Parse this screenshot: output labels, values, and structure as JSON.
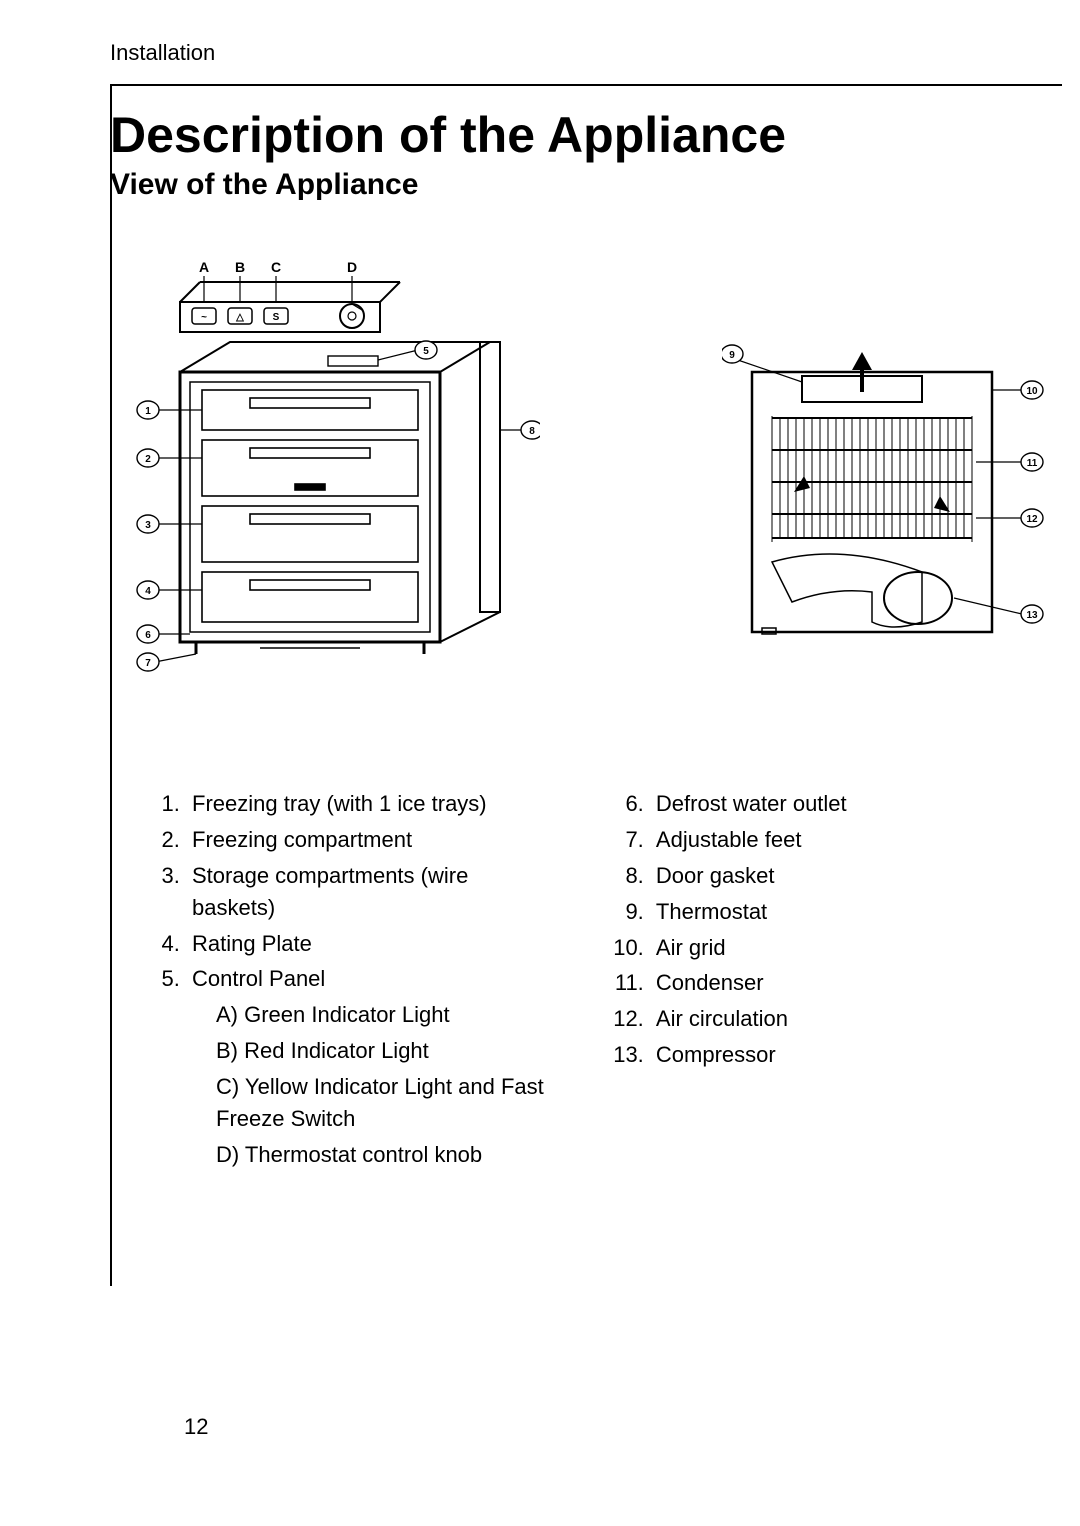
{
  "running_head": "Installation",
  "title": "Description of the Appliance",
  "subtitle": "View of the Appliance",
  "page_number": "12",
  "colors": {
    "text": "#000000",
    "background": "#ffffff",
    "line": "#000000"
  },
  "typography": {
    "title_fontsize_pt": 38,
    "subtitle_fontsize_pt": 22,
    "body_fontsize_pt": 17,
    "running_fontsize_pt": 17
  },
  "front_diagram": {
    "letter_labels": [
      "A",
      "B",
      "C",
      "D"
    ],
    "number_callouts": [
      1,
      2,
      3,
      4,
      5,
      6,
      7,
      8
    ]
  },
  "rear_diagram": {
    "number_callouts": [
      9,
      10,
      11,
      12,
      13
    ]
  },
  "parts_left": [
    {
      "n": "1.",
      "label": "Freezing tray (with 1 ice trays)"
    },
    {
      "n": "2.",
      "label": "Freezing compartment"
    },
    {
      "n": "3.",
      "label": "Storage compartments (wire baskets)"
    },
    {
      "n": "4.",
      "label": "Rating Plate"
    },
    {
      "n": "5.",
      "label": "Control Panel",
      "sub": [
        {
          "k": "A)",
          "label": "Green Indicator Light"
        },
        {
          "k": "B)",
          "label": "Red Indicator Light"
        },
        {
          "k": "C)",
          "label": "Yellow Indicator Light and Fast Freeze Switch"
        },
        {
          "k": "D)",
          "label": "Thermostat control knob"
        }
      ]
    }
  ],
  "parts_right": [
    {
      "n": "6.",
      "label": "Defrost water outlet"
    },
    {
      "n": "7.",
      "label": "Adjustable feet"
    },
    {
      "n": "8.",
      "label": "Door gasket"
    },
    {
      "n": "9.",
      "label": "Thermostat"
    },
    {
      "n": "10.",
      "label": "Air grid"
    },
    {
      "n": "11.",
      "label": "Condenser"
    },
    {
      "n": "12.",
      "label": "Air circulation"
    },
    {
      "n": "13.",
      "label": "Compressor"
    }
  ]
}
